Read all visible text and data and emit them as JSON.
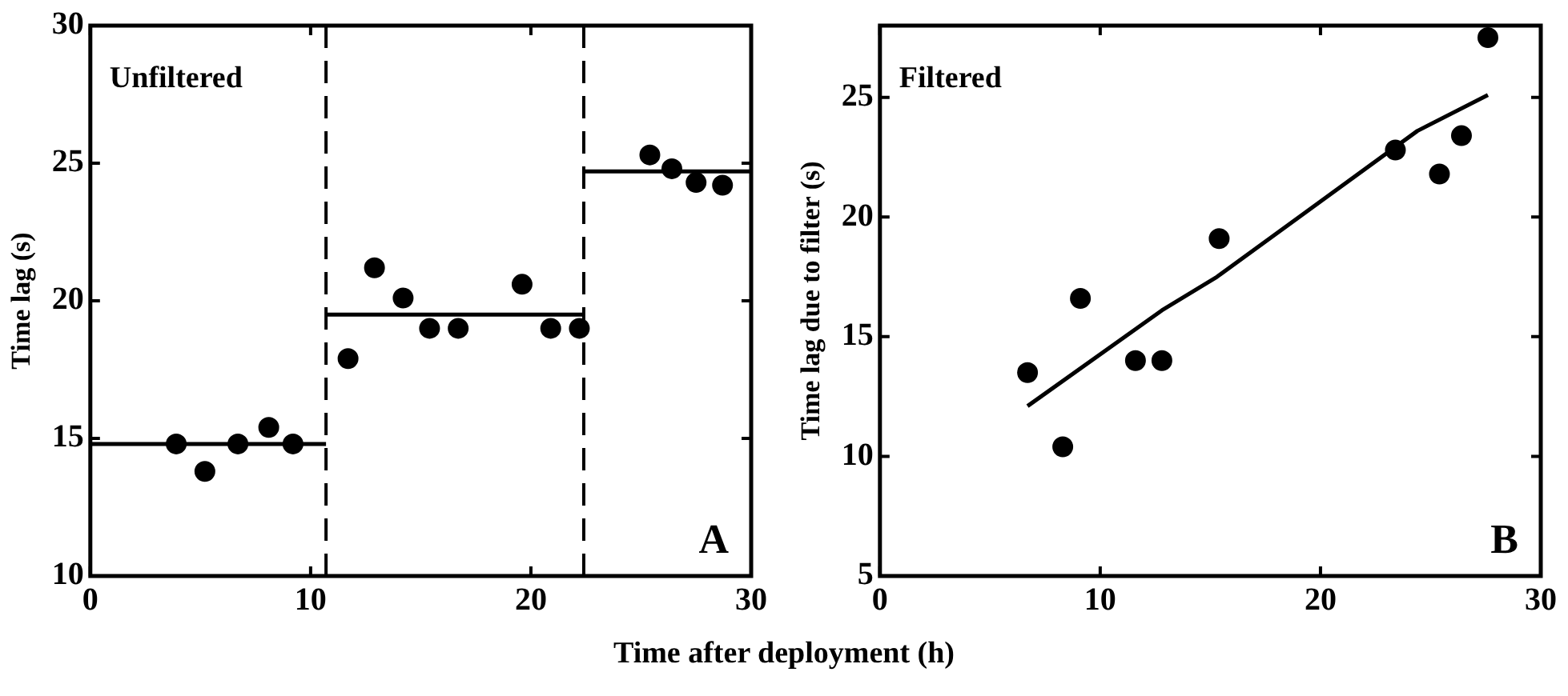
{
  "chart_data": [
    {
      "type": "scatter",
      "xlabel": "Time after deployment (h)",
      "ylabel": "Time lag (s)",
      "annotations": [
        "Unfiltered",
        "A"
      ],
      "xlim": [
        0,
        30
      ],
      "xticks": [
        0,
        10,
        20,
        30
      ],
      "ylim": [
        10,
        30
      ],
      "yticks": [
        10,
        15,
        20,
        25,
        30
      ],
      "grid": false,
      "legend": false,
      "marker": "circle",
      "series": [
        {
          "color": "#000000",
          "x": [
            3.9,
            5.2,
            6.7,
            8.1,
            9.2,
            11.7,
            12.9,
            14.2,
            15.4,
            16.7,
            19.6,
            20.9,
            22.2,
            25.4,
            26.4,
            27.5,
            28.7
          ],
          "values": [
            14.8,
            13.8,
            14.8,
            15.4,
            14.8,
            17.9,
            21.2,
            20.1,
            19.0,
            19.0,
            20.6,
            19.0,
            19.0,
            25.3,
            24.8,
            24.3,
            24.2
          ]
        },
        {
          "type": "line",
          "color": "#000000",
          "line_style": "solid",
          "marker": "none",
          "x": [
            0,
            10.7
          ],
          "values": [
            14.8,
            14.8
          ]
        },
        {
          "type": "line",
          "color": "#000000",
          "line_style": "solid",
          "marker": "none",
          "x": [
            10.7,
            22.4
          ],
          "values": [
            19.5,
            19.5
          ]
        },
        {
          "type": "line",
          "color": "#000000",
          "line_style": "solid",
          "marker": "none",
          "x": [
            22.4,
            30
          ],
          "values": [
            24.7,
            24.7
          ]
        }
      ],
      "ref_lines": [
        {
          "axis": "x",
          "value": 10.7,
          "color": "#000000",
          "line_style": "dashed"
        },
        {
          "axis": "x",
          "value": 22.4,
          "color": "#000000",
          "line_style": "dashed"
        }
      ]
    },
    {
      "type": "scatter",
      "ylabel": "Time lag due to filter (s)",
      "annotations": [
        "Filtered",
        "B"
      ],
      "xlim": [
        0,
        30
      ],
      "xticks": [
        0,
        10,
        20,
        30
      ],
      "ylim": [
        5,
        28
      ],
      "yticks": [
        5,
        10,
        15,
        20,
        25
      ],
      "grid": false,
      "legend": false,
      "marker": "circle",
      "series": [
        {
          "color": "#000000",
          "x": [
            6.7,
            8.3,
            9.1,
            11.6,
            12.8,
            15.4,
            23.4,
            25.4,
            26.4,
            27.6
          ],
          "values": [
            13.5,
            10.4,
            16.6,
            14.0,
            14.0,
            19.1,
            22.8,
            21.8,
            23.4,
            27.5
          ]
        },
        {
          "type": "line",
          "color": "#000000",
          "line_style": "solid",
          "marker": "none",
          "x": [
            6.7,
            12.8,
            15.3,
            24.4,
            27.6
          ],
          "values": [
            12.1,
            16.1,
            17.5,
            23.6,
            25.1
          ]
        }
      ]
    }
  ]
}
